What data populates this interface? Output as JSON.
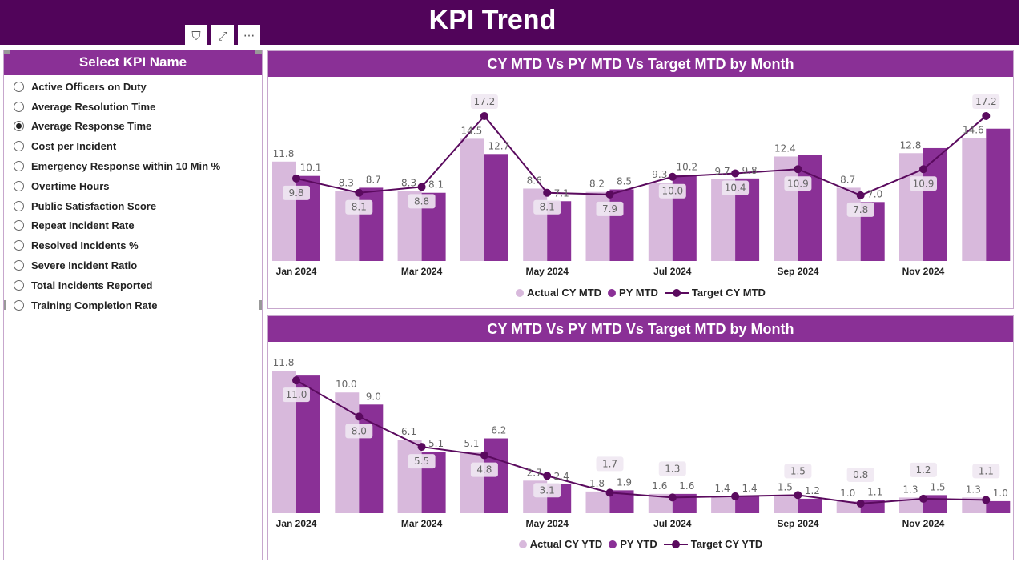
{
  "header": {
    "title": "KPI Trend"
  },
  "visual_icons": [
    {
      "name": "filter-icon",
      "glyph": "⛉"
    },
    {
      "name": "focus-mode-icon",
      "glyph": "⤢"
    },
    {
      "name": "more-options-icon",
      "glyph": "···"
    }
  ],
  "slicer": {
    "title": "Select KPI Name",
    "selected": "Average Response Time",
    "items": [
      "Active Officers on Duty",
      "Average Resolution Time",
      "Average Response Time",
      "Cost per Incident",
      "Emergency Response within 10 Min %",
      "Overtime Hours",
      "Public Satisfaction Score",
      "Repeat Incident Rate",
      "Resolved Incidents %",
      "Severe Incident Ratio",
      "Total Incidents Reported",
      "Training Completion Rate"
    ]
  },
  "colors": {
    "header": "#51045a",
    "cy": "#d8b9dc",
    "py": "#8a3096",
    "target": "#5a0a5e"
  },
  "chart_data": [
    {
      "type": "bar",
      "title": "CY MTD Vs PY MTD Vs Target MTD by Month",
      "categories": [
        "Jan 2024",
        "Feb 2024",
        "Mar 2024",
        "Apr 2024",
        "May 2024",
        "Jun 2024",
        "Jul 2024",
        "Aug 2024",
        "Sep 2024",
        "Oct 2024",
        "Nov 2024",
        "Dec 2024"
      ],
      "x_tick_labels": [
        "Jan 2024",
        "",
        "Mar 2024",
        "",
        "May 2024",
        "",
        "Jul 2024",
        "",
        "Sep 2024",
        "",
        "Nov 2024",
        ""
      ],
      "ylim": [
        0,
        19
      ],
      "legend": "bottom",
      "series": [
        {
          "name": "Actual CY MTD",
          "kind": "bar",
          "values": [
            11.8,
            8.3,
            8.3,
            14.5,
            8.6,
            8.2,
            9.3,
            9.7,
            12.4,
            8.7,
            12.8,
            14.6
          ],
          "labels": [
            "11.8",
            "8.3",
            "8.3",
            "14.5",
            "8.6",
            "8.2",
            "9.3",
            "9.7",
            "12.4",
            "8.7",
            "12.8",
            "14.6"
          ]
        },
        {
          "name": "PY MTD",
          "kind": "bar",
          "values": [
            10.1,
            8.7,
            8.1,
            12.7,
            7.1,
            8.5,
            10.2,
            9.8,
            12.6,
            7.0,
            13.4,
            15.7
          ],
          "labels": [
            "10.1",
            "8.7",
            "8.1",
            "12.7",
            "7.1",
            "8.5",
            "10.2",
            "9.8",
            "",
            "7.0",
            "",
            ""
          ]
        },
        {
          "name": "Target CY MTD",
          "kind": "line",
          "values": [
            9.8,
            8.1,
            8.8,
            17.2,
            8.1,
            7.9,
            10.0,
            10.4,
            10.9,
            7.8,
            10.9,
            17.2
          ],
          "labels": [
            "9.8",
            "8.1",
            "8.8",
            "17.2",
            "8.1",
            "7.9",
            "10.0",
            "10.4",
            "10.9",
            "7.8",
            "10.9",
            "17.2"
          ]
        }
      ]
    },
    {
      "type": "bar",
      "title": "CY MTD Vs PY MTD Vs Target MTD by Month",
      "categories": [
        "Jan 2024",
        "Feb 2024",
        "Mar 2024",
        "Apr 2024",
        "May 2024",
        "Jun 2024",
        "Jul 2024",
        "Aug 2024",
        "Sep 2024",
        "Oct 2024",
        "Nov 2024",
        "Dec 2024"
      ],
      "x_tick_labels": [
        "Jan 2024",
        "",
        "Mar 2024",
        "",
        "May 2024",
        "",
        "Jul 2024",
        "",
        "Sep 2024",
        "",
        "Nov 2024",
        ""
      ],
      "ylim": [
        0,
        13
      ],
      "legend": "bottom",
      "series": [
        {
          "name": "Actual CY YTD",
          "kind": "bar",
          "values": [
            11.8,
            10.0,
            6.1,
            5.1,
            2.7,
            1.8,
            1.6,
            1.4,
            1.5,
            1.0,
            1.3,
            1.3
          ],
          "labels": [
            "11.8",
            "10.0",
            "6.1",
            "5.1",
            "2.7",
            "1.8",
            "1.6",
            "1.4",
            "1.5",
            "1.0",
            "1.3",
            "1.3"
          ]
        },
        {
          "name": "PY YTD",
          "kind": "bar",
          "values": [
            11.4,
            9.0,
            5.1,
            6.2,
            2.4,
            1.9,
            1.6,
            1.4,
            1.2,
            1.1,
            1.5,
            1.0
          ],
          "labels": [
            "",
            "9.0",
            "5.1",
            "6.2",
            "2.4",
            "1.9",
            "1.6",
            "1.4",
            "1.2",
            "1.1",
            "1.5",
            "1.0"
          ]
        },
        {
          "name": "Target CY YTD",
          "kind": "line",
          "values": [
            11.0,
            8.0,
            5.5,
            4.8,
            3.1,
            1.7,
            1.3,
            1.4,
            1.5,
            0.8,
            1.2,
            1.1
          ],
          "labels": [
            "11.0",
            "8.0",
            "5.5",
            "4.8",
            "3.1",
            "1.7",
            "1.3",
            "",
            "1.5",
            "0.8",
            "1.2",
            "1.1"
          ]
        }
      ]
    }
  ]
}
